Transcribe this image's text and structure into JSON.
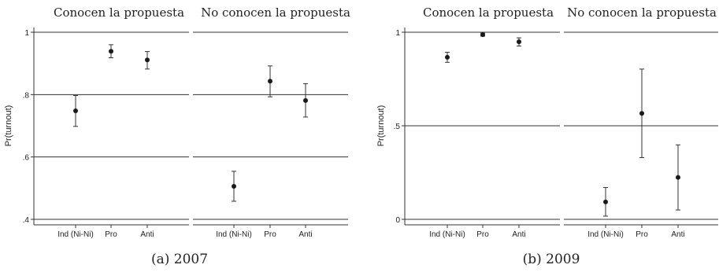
{
  "chart_data": [
    {
      "type": "scatter",
      "caption": "(a) 2007",
      "ylabel": "Pr(turnout)",
      "ylim": [
        0.4,
        1.0
      ],
      "yticks": [
        0.4,
        0.6,
        0.8,
        1.0
      ],
      "ytick_labels": [
        ".4",
        ".6",
        ".8",
        "1"
      ],
      "grid": true,
      "categories": [
        "Ind (Ni-Ni)",
        "Pro",
        "Anti"
      ],
      "panels": [
        {
          "title": "Conocen la propuesta",
          "points": [
            {
              "category": "Ind (Ni-Ni)",
              "estimate": 0.748,
              "lower": 0.698,
              "upper": 0.797
            },
            {
              "category": "Pro",
              "estimate": 0.939,
              "lower": 0.918,
              "upper": 0.96
            },
            {
              "category": "Anti",
              "estimate": 0.911,
              "lower": 0.882,
              "upper": 0.938
            }
          ]
        },
        {
          "title": "No conocen la propuesta",
          "points": [
            {
              "category": "Ind (Ni-Ni)",
              "estimate": 0.506,
              "lower": 0.458,
              "upper": 0.554
            },
            {
              "category": "Pro",
              "estimate": 0.843,
              "lower": 0.793,
              "upper": 0.892
            },
            {
              "category": "Anti",
              "estimate": 0.781,
              "lower": 0.728,
              "upper": 0.835
            }
          ]
        }
      ]
    },
    {
      "type": "scatter",
      "caption": "(b) 2009",
      "ylabel": "Pr(turnout)",
      "ylim": [
        0,
        1.0
      ],
      "yticks": [
        0,
        0.5,
        1.0
      ],
      "ytick_labels": [
        "0",
        ".5",
        "1"
      ],
      "grid": true,
      "categories": [
        "Ind (Ni-Ni)",
        "Pro",
        "Anti"
      ],
      "panels": [
        {
          "title": "Conocen la propuesta",
          "points": [
            {
              "category": "Ind (Ni-Ni)",
              "estimate": 0.866,
              "lower": 0.839,
              "upper": 0.893
            },
            {
              "category": "Pro",
              "estimate": 0.987,
              "lower": 0.979,
              "upper": 0.995
            },
            {
              "category": "Anti",
              "estimate": 0.949,
              "lower": 0.926,
              "upper": 0.97
            }
          ]
        },
        {
          "title": "No conocen la propuesta",
          "points": [
            {
              "category": "Ind (Ni-Ni)",
              "estimate": 0.093,
              "lower": 0.017,
              "upper": 0.17
            },
            {
              "category": "Pro",
              "estimate": 0.566,
              "lower": 0.33,
              "upper": 0.803
            },
            {
              "category": "Anti",
              "estimate": 0.224,
              "lower": 0.05,
              "upper": 0.398
            }
          ]
        }
      ]
    }
  ]
}
